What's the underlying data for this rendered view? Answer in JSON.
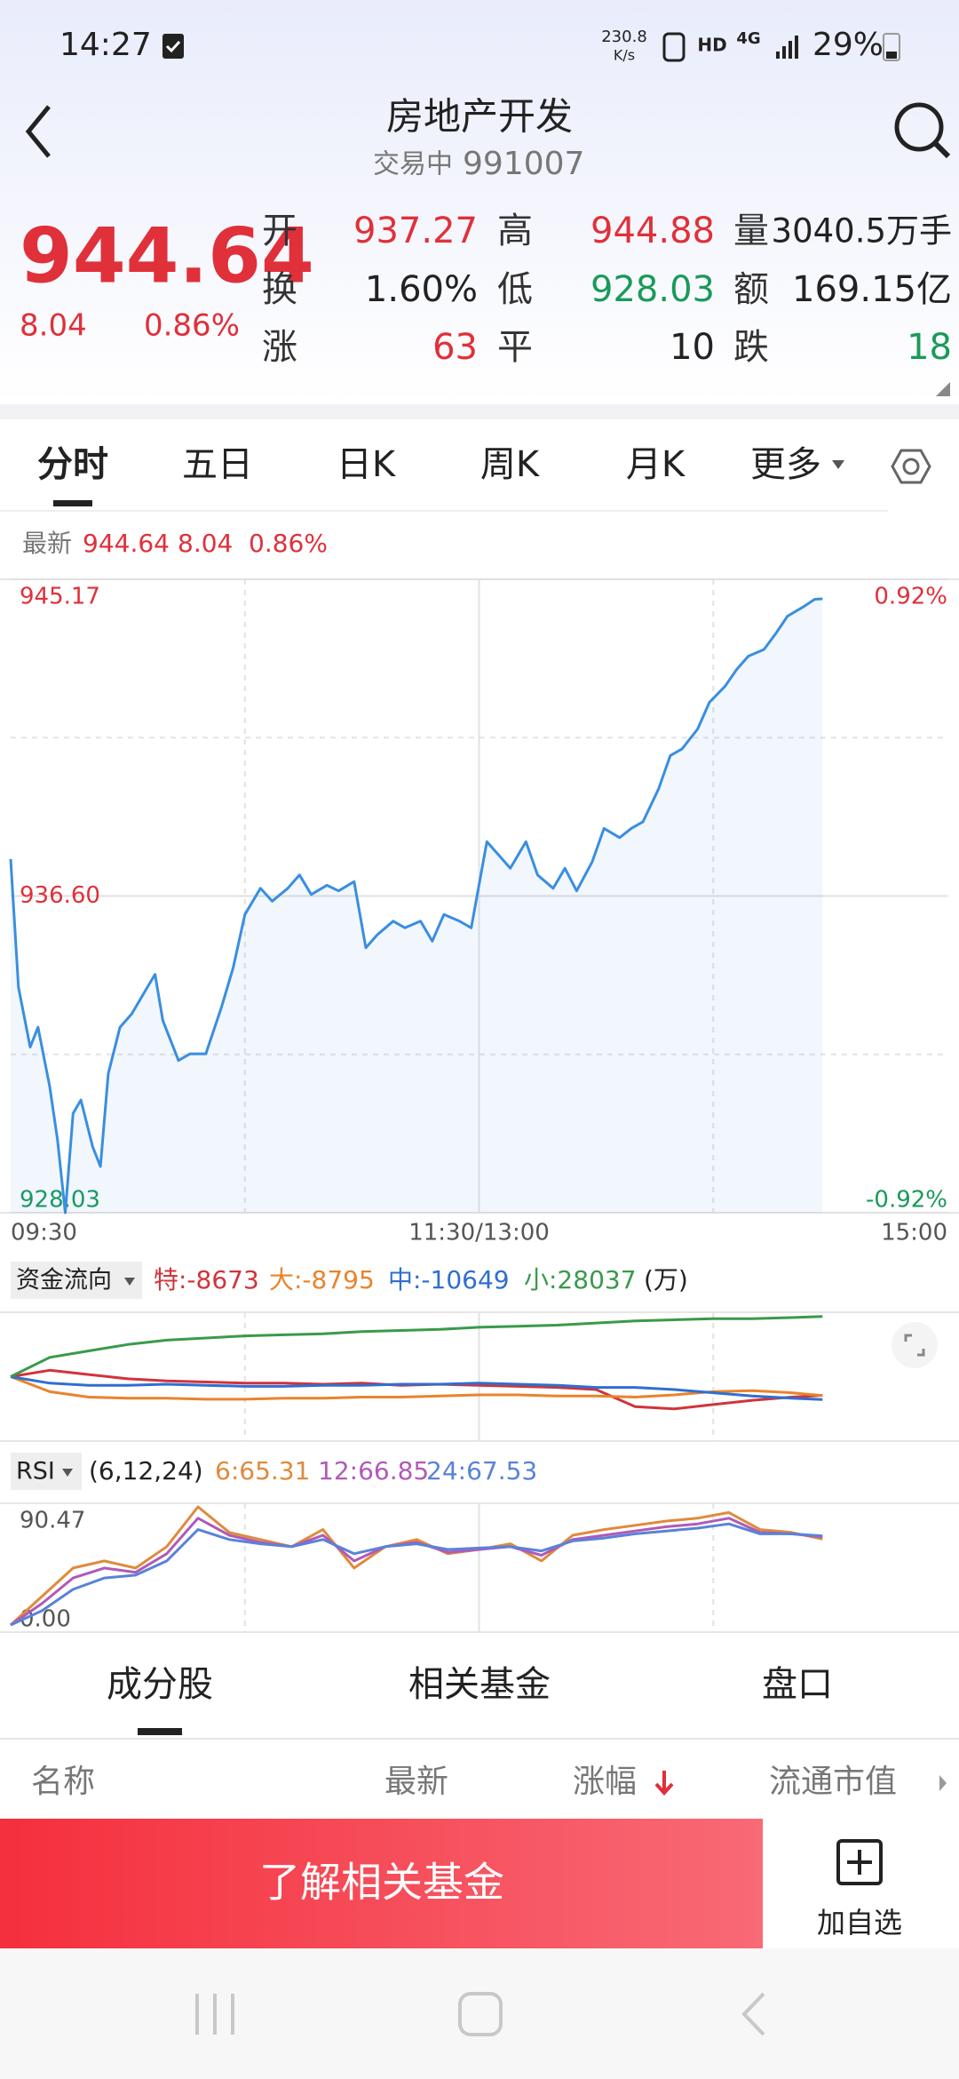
{
  "status_bar": {
    "time": "14:27",
    "speed": "230.8",
    "speed_unit": "K/s",
    "hd": "HD",
    "network": "4G",
    "battery": "29%"
  },
  "header": {
    "title": "房地产开发",
    "status": "交易中",
    "code": "991007"
  },
  "quote": {
    "price": "944.64",
    "change": "8.04",
    "change_pct": "0.86%",
    "stats": [
      [
        {
          "label": "开",
          "value": "937.27"
        },
        {
          "label": "高",
          "value": "944.88"
        },
        {
          "label": "量",
          "value": "3040.5万手"
        }
      ],
      [
        {
          "label": "换",
          "value": "1.60%"
        },
        {
          "label": "低",
          "value": "928.03"
        },
        {
          "label": "额",
          "value": "169.15亿"
        }
      ],
      [
        {
          "label": "涨",
          "value": "63"
        },
        {
          "label": "平",
          "value": "10"
        },
        {
          "label": "跌",
          "value": "18"
        }
      ]
    ]
  },
  "tabs": [
    "分时",
    "五日",
    "日K",
    "周K",
    "月K",
    "更多"
  ],
  "latest": {
    "label": "最新",
    "price": "944.64",
    "change": "8.04",
    "change_pct": "0.86%"
  },
  "chart_data": [
    {
      "type": "line",
      "area": true,
      "grid": true,
      "x": [
        0,
        2,
        5,
        7,
        10,
        12,
        14,
        16,
        18,
        21,
        23,
        25,
        28,
        31,
        35,
        37,
        39,
        43,
        46,
        50,
        54,
        57,
        60,
        64,
        67,
        71,
        74,
        77,
        81,
        84,
        88,
        91,
        94,
        98,
        101,
        105,
        108,
        111,
        115,
        118,
        122,
        125,
        128,
        132,
        135,
        139,
        142,
        145,
        149,
        152,
        156,
        159,
        162,
        166,
        169,
        172,
        176,
        179,
        183,
        186,
        189,
        193,
        196,
        199,
        203,
        206,
        208
      ],
      "xlim": [
        0,
        240
      ],
      "xticks": [
        {
          "value": 0,
          "label": "09:30"
        },
        {
          "value": 120,
          "label": "11:30/13:00"
        },
        {
          "value": 240,
          "label": "15:00"
        }
      ],
      "ylim": [
        928.03,
        945.17
      ],
      "yticks": [
        945.17,
        {
          "value": 936.6,
          "label": "936.60"
        },
        928.03
      ],
      "y2lim": [
        -0.92,
        0.92
      ],
      "y2ticks": [
        {
          "value": 0.92,
          "label": "0.92%"
        },
        {
          "value": -0.92,
          "label": "-0.92%"
        }
      ],
      "series": [
        {
          "color": "#3a8ee0",
          "values": [
            937.6,
            934.13,
            932.51,
            933.05,
            931.44,
            930.0,
            928.03,
            930.72,
            931.08,
            929.82,
            929.28,
            931.79,
            933.05,
            933.41,
            934.13,
            934.48,
            933.23,
            932.15,
            932.33,
            932.33,
            933.59,
            934.66,
            936.1,
            936.81,
            936.46,
            936.81,
            937.17,
            936.64,
            936.89,
            936.74,
            936.99,
            935.2,
            935.56,
            935.92,
            935.74,
            935.92,
            935.38,
            936.1,
            935.92,
            935.74,
            938.07,
            937.71,
            937.35,
            938.07,
            937.17,
            936.81,
            937.35,
            936.74,
            937.53,
            938.43,
            938.18,
            938.43,
            938.61,
            939.5,
            940.4,
            940.58,
            941.12,
            941.84,
            942.27,
            942.73,
            943.09,
            943.27,
            943.7,
            944.17,
            944.42,
            944.63,
            944.64
          ]
        }
      ]
    },
    {
      "type": "line",
      "title": "资金流向",
      "unit": "(万)",
      "x": [
        0,
        10,
        20,
        30,
        40,
        50,
        60,
        70,
        80,
        90,
        100,
        110,
        120,
        130,
        140,
        150,
        160,
        170,
        180,
        190,
        200,
        208
      ],
      "xlim": [
        0,
        240
      ],
      "ylim": [
        -30000,
        30000
      ],
      "series": [
        {
          "name": "特:-8673",
          "color": "#d0343c",
          "values": [
            0,
            3000,
            1000,
            -1000,
            -2000,
            -2500,
            -3000,
            -3000,
            -3500,
            -3000,
            -4000,
            -3500,
            -4000,
            -4500,
            -5000,
            -6000,
            -14000,
            -15000,
            -13000,
            -11000,
            -9500,
            -8673
          ]
        },
        {
          "name": "大:-8795",
          "color": "#e8842c",
          "values": [
            0,
            -7000,
            -9500,
            -10000,
            -10000,
            -10500,
            -10500,
            -10000,
            -10000,
            -9500,
            -9500,
            -9000,
            -8500,
            -8500,
            -9000,
            -9000,
            -9500,
            -8500,
            -7000,
            -6500,
            -7500,
            -8795
          ]
        },
        {
          "name": "中:-10649",
          "color": "#2f6fd0",
          "values": [
            0,
            -3000,
            -4000,
            -4000,
            -3500,
            -4000,
            -4500,
            -4500,
            -4000,
            -4000,
            -3500,
            -3500,
            -3000,
            -3500,
            -4000,
            -5000,
            -5000,
            -6000,
            -7500,
            -9000,
            -10000,
            -10649
          ]
        },
        {
          "name": "小:28037",
          "color": "#3a9a4a",
          "values": [
            0,
            9000,
            12000,
            15000,
            17000,
            18000,
            19000,
            19500,
            20000,
            21000,
            21500,
            22000,
            23000,
            23500,
            24000,
            25000,
            26000,
            26500,
            27000,
            27000,
            27500,
            28037
          ]
        }
      ]
    },
    {
      "type": "line",
      "title": "RSI",
      "params": "(6,12,24)",
      "x": [
        0,
        8,
        16,
        24,
        32,
        40,
        48,
        56,
        64,
        72,
        80,
        88,
        96,
        104,
        112,
        120,
        128,
        136,
        144,
        152,
        160,
        168,
        176,
        184,
        192,
        200,
        208
      ],
      "xlim": [
        0,
        240
      ],
      "ylim": [
        0,
        90.47
      ],
      "yticks": [
        90.47,
        {
          "value": 0,
          "label": "0.00"
        }
      ],
      "series": [
        {
          "name": "6:65.31",
          "color": "#e08a3c",
          "values": [
            5,
            25,
            45,
            50,
            45,
            60,
            88,
            70,
            65,
            60,
            72,
            45,
            60,
            65,
            55,
            58,
            62,
            50,
            68,
            72,
            75,
            78,
            80,
            84,
            72,
            70,
            65.31
          ]
        },
        {
          "name": "12:66.85",
          "color": "#b05ab8",
          "values": [
            5,
            20,
            38,
            45,
            42,
            55,
            80,
            68,
            63,
            60,
            68,
            50,
            60,
            63,
            56,
            58,
            60,
            54,
            65,
            68,
            71,
            74,
            76,
            80,
            70,
            69,
            66.85
          ]
        },
        {
          "name": "24:67.53",
          "color": "#5a82d8",
          "values": [
            5,
            15,
            30,
            38,
            40,
            50,
            72,
            65,
            62,
            60,
            65,
            55,
            60,
            62,
            58,
            59,
            60,
            57,
            64,
            66,
            69,
            71,
            73,
            76,
            69,
            69,
            67.53
          ]
        }
      ]
    }
  ],
  "bottom_tabs": [
    "成分股",
    "相关基金",
    "盘口"
  ],
  "table_header": [
    "名称",
    "最新",
    "涨幅",
    "流通市值"
  ],
  "actions": {
    "button": "了解相关基金",
    "add": "加自选"
  }
}
